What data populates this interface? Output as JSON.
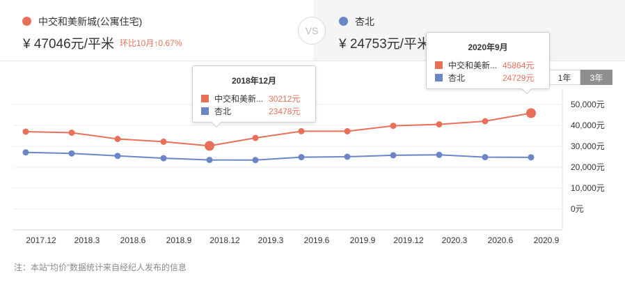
{
  "header": {
    "left": {
      "name": "中交和美新城(公寓住宅)",
      "price": "¥ 47046元/平米",
      "change": "环比10月↑0.67%",
      "color": "#e86f58"
    },
    "vs": "VS",
    "right": {
      "name": "杏北",
      "price": "¥ 24753元/平米",
      "color": "#6b86c7"
    }
  },
  "tabs": [
    {
      "label": "1年",
      "active": false
    },
    {
      "label": "3年",
      "active": true
    }
  ],
  "tooltips": [
    {
      "title": "2018年12月",
      "rows": [
        {
          "name": "中交和美新...",
          "value": "30212元"
        },
        {
          "name": "杏北",
          "value": "23478元"
        }
      ]
    },
    {
      "title": "2020年9月",
      "rows": [
        {
          "name": "中交和美新...",
          "value": "45864元"
        },
        {
          "name": "杏北",
          "value": "24729元"
        }
      ]
    }
  ],
  "note": "注：本站“均价”数据统计来自经纪人发布的信息",
  "chart_data": {
    "type": "line",
    "x": [
      "2017.12",
      "2018.3",
      "2018.6",
      "2018.9",
      "2018.12",
      "2019.3",
      "2019.6",
      "2019.9",
      "2019.12",
      "2020.3",
      "2020.6",
      "2020.9"
    ],
    "series": [
      {
        "name": "中交和美新城(公寓住宅)",
        "color": "#e86f58",
        "values": [
          37000,
          36500,
          33500,
          32200,
          30212,
          34000,
          37200,
          37200,
          39800,
          40500,
          42000,
          45864
        ]
      },
      {
        "name": "杏北",
        "color": "#6b86c7",
        "values": [
          27100,
          26600,
          25400,
          24300,
          23478,
          23400,
          24800,
          25000,
          25700,
          25900,
          24800,
          24729
        ]
      }
    ],
    "yticks": [
      "50,000元",
      "40,000元",
      "30,000元",
      "20,000元",
      "10,000元",
      "0元"
    ],
    "ylim": [
      0,
      50000
    ],
    "grid": true,
    "highlighted": [
      "2018.12",
      "2020.9"
    ]
  }
}
